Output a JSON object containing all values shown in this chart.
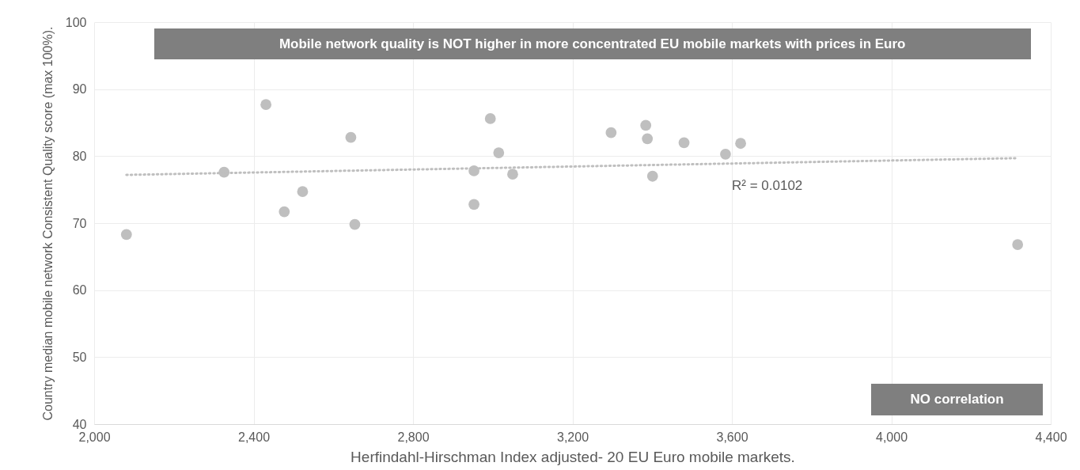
{
  "chart_data": {
    "type": "scatter",
    "title": "Mobile network quality is NOT higher in more concentrated EU mobile markets with prices in Euro",
    "xlabel": "Herfindahl-Hirschman Index adjusted- 20 EU Euro mobile markets.",
    "ylabel": "Country median mobile network Consistent Quality score (max 100%).",
    "annotations": [
      "R² = 0.0102",
      "NO correlation"
    ],
    "xlim": [
      2000,
      4400
    ],
    "xticks": [
      {
        "value": 2000,
        "label": "2,000"
      },
      {
        "value": 2400,
        "label": "2,400"
      },
      {
        "value": 2800,
        "label": "2,800"
      },
      {
        "value": 3200,
        "label": "3,200"
      },
      {
        "value": 3600,
        "label": "3,600"
      },
      {
        "value": 4000,
        "label": "4,000"
      },
      {
        "value": 4400,
        "label": "4,400"
      }
    ],
    "ylim": [
      40,
      100
    ],
    "yticks": [
      40,
      50,
      60,
      70,
      80,
      90,
      100
    ],
    "grid": true,
    "marker": "circle",
    "series": [
      {
        "color": "#bfbfbf",
        "x": [
          2081,
          2326,
          2431,
          2477,
          2523,
          2644,
          2654,
          2953,
          2953,
          2994,
          3015,
          3050,
          3297,
          3384,
          3388,
          3401,
          3480,
          3584,
          3622,
          4317
        ],
        "values": [
          68.3,
          77.6,
          87.7,
          71.7,
          74.7,
          82.8,
          69.8,
          77.8,
          72.8,
          85.6,
          80.5,
          77.3,
          83.5,
          84.6,
          82.6,
          77.0,
          82.0,
          80.3,
          81.9,
          66.8
        ]
      },
      {
        "type": "line",
        "color": "#bfbfbf",
        "line_style": "dotted",
        "marker": "none",
        "x": [
          2081,
          4317
        ],
        "values": [
          77.2,
          79.7
        ]
      }
    ]
  }
}
